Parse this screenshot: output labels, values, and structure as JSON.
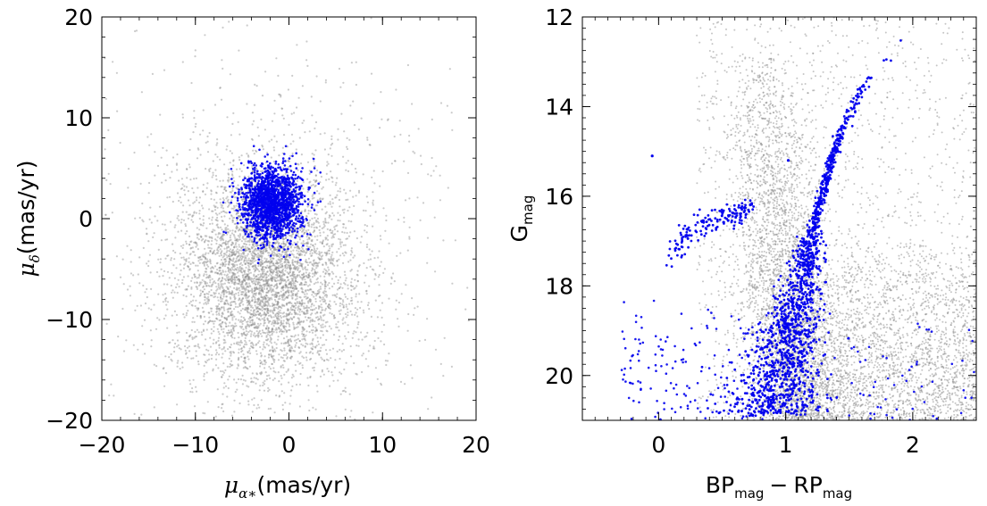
{
  "chart_data": [
    {
      "type": "scatter",
      "name": "proper-motion",
      "xlim": [
        -20,
        20
      ],
      "ylim": [
        -20,
        20
      ],
      "xticks": [
        -20,
        -10,
        0,
        10,
        20
      ],
      "yticks": [
        -20,
        -10,
        0,
        10,
        20
      ],
      "xtick_labels": [
        "−20",
        "−10",
        "0",
        "10",
        "20"
      ],
      "ytick_labels": [
        "−20",
        "−10",
        "0",
        "10",
        "20"
      ],
      "xlabel": {
        "symbol": "μ",
        "sub": "α∗",
        "unit": "(mas/yr)"
      },
      "ylabel": {
        "symbol": "μ",
        "sub": "δ",
        "unit": "(mas/yr)"
      },
      "grid": false,
      "series": [
        {
          "role": "field",
          "color": "#8c8c8c",
          "distribution": "gaussian",
          "center": [
            -2.5,
            -5.5
          ],
          "sigma": [
            4.6,
            5.0
          ],
          "halo": {
            "center": [
              -2,
              -3
            ],
            "sigma": [
              10,
              10
            ]
          }
        },
        {
          "role": "members",
          "color": "#0000ee",
          "distribution": "gaussian",
          "center": [
            -1.8,
            1.5
          ],
          "sigma": [
            1.6,
            1.8
          ]
        }
      ]
    },
    {
      "type": "scatter",
      "name": "color-magnitude",
      "xlim": [
        -0.6,
        2.5
      ],
      "ylim": [
        21,
        12
      ],
      "y_inverted": true,
      "xticks": [
        0,
        1,
        2
      ],
      "yticks": [
        12,
        14,
        16,
        18,
        20
      ],
      "xtick_labels": [
        "0",
        "1",
        "2"
      ],
      "ytick_labels": [
        "12",
        "14",
        "16",
        "18",
        "20"
      ],
      "xlabel": {
        "a": "BP",
        "a_sub": "mag",
        "op": "−",
        "b": "RP",
        "b_sub": "mag"
      },
      "ylabel": {
        "a": "G",
        "a_sub": "mag"
      },
      "grid": false,
      "series": [
        {
          "role": "field",
          "color": "#8c8c8c",
          "description": "broad field-star cloud, denser toward faint magnitudes"
        },
        {
          "role": "members",
          "color": "#0000ee",
          "sequence_main": [
            [
              1.95,
              12.4
            ],
            [
              1.8,
              12.9
            ],
            [
              1.6,
              13.6
            ],
            [
              1.45,
              14.5
            ],
            [
              1.35,
              15.3
            ],
            [
              1.28,
              16.0
            ],
            [
              1.22,
              16.7
            ],
            [
              1.17,
              17.4
            ],
            [
              1.12,
              18.0
            ],
            [
              1.06,
              18.7
            ],
            [
              1.0,
              19.3
            ],
            [
              0.96,
              20.0
            ],
            [
              0.93,
              20.8
            ]
          ],
          "horizontal_branch": [
            [
              0.1,
              17.4
            ],
            [
              0.2,
              16.9
            ],
            [
              0.35,
              16.6
            ],
            [
              0.5,
              16.5
            ],
            [
              0.62,
              16.4
            ],
            [
              0.72,
              16.3
            ]
          ],
          "isolated_points": [
            [
              -0.05,
              15.1
            ],
            [
              1.02,
              15.2
            ]
          ]
        }
      ]
    }
  ]
}
